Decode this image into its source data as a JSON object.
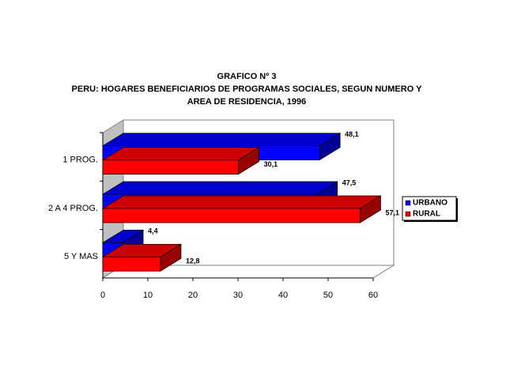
{
  "chart_data": {
    "type": "bar3d-horizontal",
    "title": [
      "GRAFICO Nº 3",
      "PERU: HOGARES BENEFICIARIOS DE PROGRAMAS SOCIALES, SEGUN NUMERO Y",
      "AREA DE RESIDENCIA, 1996"
    ],
    "categories": [
      "1 PROG.",
      "2 A 4 PROG.",
      "5 Y MAS"
    ],
    "series": [
      {
        "name": "URBANO",
        "color": "#0000ff",
        "values": [
          48.1,
          47.5,
          4.4
        ],
        "value_labels": [
          "48,1",
          "47,5",
          "4,4"
        ]
      },
      {
        "name": "RURAL",
        "color": "#ff0000",
        "values": [
          30.1,
          57.1,
          12.8
        ],
        "value_labels": [
          "30,1",
          "57,1",
          "12,8"
        ]
      }
    ],
    "xlim": [
      0,
      60
    ],
    "xticks": [
      0,
      10,
      20,
      30,
      40,
      50,
      60
    ],
    "grid": false,
    "legend": "right"
  }
}
